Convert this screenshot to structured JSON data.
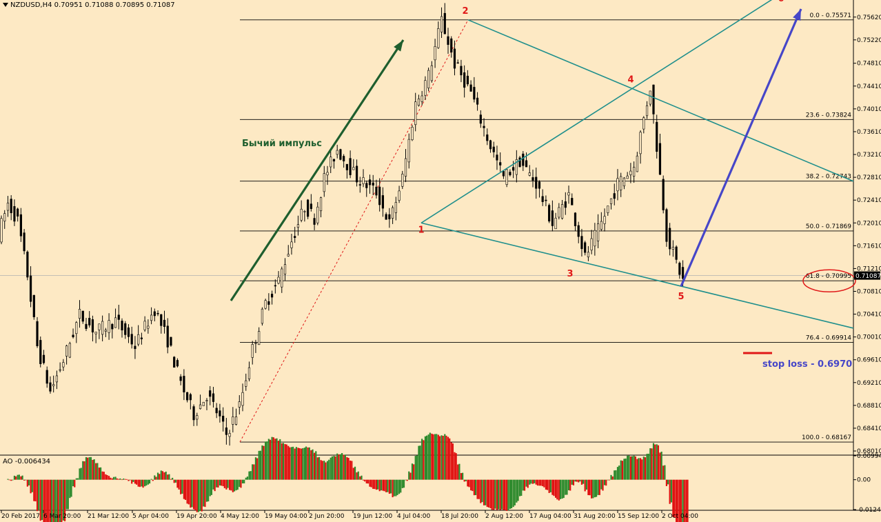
{
  "header": {
    "symbol_info": "NZDUSD,H4  0.70951 0.71088 0.70895 0.71087",
    "ao_info": "AO -0.006434"
  },
  "colors": {
    "background": "#fde9c4",
    "candles": "#000000",
    "fib_lines": "#000000",
    "channel": "#1f8f8c",
    "impulse_arrow": "#1e5e2e",
    "target_arrow": "#4646c8",
    "wave_labels": "#e01818",
    "stop_line": "#e01818",
    "stop_text": "#4646c8",
    "price_tag_bg": "#000000",
    "ao_up": "#2d8a2d",
    "ao_down": "#e01010"
  },
  "icons": {
    "dropdown": "triangle-down-icon"
  },
  "chart_data": [
    {
      "type": "line",
      "title": "NZDUSD,H4",
      "price_axis": {
        "ticks": [
          "0.75620",
          "0.75220",
          "0.74810",
          "0.74410",
          "0.74010",
          "0.73610",
          "0.73210",
          "0.72810",
          "0.72410",
          "0.72010",
          "0.71610",
          "0.71210",
          "0.70810",
          "0.70410",
          "0.70010",
          "0.69610",
          "0.69210",
          "0.68810",
          "0.68410",
          "0.68010"
        ],
        "ylim": [
          0.6795,
          0.7575
        ],
        "current_price": "0.71087"
      },
      "time_axis": {
        "labels": [
          "20 Feb 2017",
          "6 Mar 20:00",
          "21 Mar 12:00",
          "5 Apr 04:00",
          "19 Apr 20:00",
          "4 May 12:00",
          "19 May 04:00",
          "2 Jun 20:00",
          "19 Jun 12:00",
          "4 Jul 04:00",
          "18 Jul 20:00",
          "2 Aug 12:00",
          "17 Aug 04:00",
          "31 Aug 20:00",
          "15 Sep 12:00",
          "2 Oct 04:00"
        ]
      },
      "price_path": {
        "x_index": [
          0,
          3,
          6,
          9,
          12,
          16,
          20,
          25,
          30,
          36,
          42,
          48,
          52,
          56,
          60,
          64,
          67,
          70,
          74,
          78,
          82,
          86,
          90,
          94,
          97,
          100,
          104,
          110,
          116,
          120,
          124,
          128,
          132,
          136,
          140,
          145,
          150,
          155,
          160,
          165,
          170,
          175,
          180,
          185,
          190,
          195,
          200,
          205,
          210
        ],
        "close": [
          0.718,
          0.7235,
          0.7205,
          0.711,
          0.6985,
          0.6905,
          0.696,
          0.704,
          0.701,
          0.703,
          0.6985,
          0.705,
          0.6995,
          0.692,
          0.6865,
          0.69,
          0.687,
          0.683,
          0.688,
          0.698,
          0.706,
          0.71,
          0.717,
          0.723,
          0.721,
          0.728,
          0.733,
          0.728,
          0.7255,
          0.72,
          0.728,
          0.741,
          0.746,
          0.7557,
          0.748,
          0.743,
          0.735,
          0.728,
          0.731,
          0.727,
          0.72,
          0.725,
          0.714,
          0.72,
          0.727,
          0.73,
          0.744,
          0.718,
          0.71
        ]
      },
      "fibonacci_levels": [
        {
          "label": "0.0 - 0.75571",
          "value": 0.75571
        },
        {
          "label": "23.6 - 0.73824",
          "value": 0.73824
        },
        {
          "label": "38.2 - 0.72743",
          "value": 0.72743
        },
        {
          "label": "50.0 - 0.71869",
          "value": 0.71869
        },
        {
          "label": "61.8 - 0.70995",
          "value": 0.70995
        },
        {
          "label": "76.4 - 0.69914",
          "value": 0.69914
        },
        {
          "label": "100.0 - 0.68167",
          "value": 0.68167
        }
      ],
      "wave_points": [
        {
          "label": "1",
          "date": "4 Jul",
          "price": 0.7201
        },
        {
          "label": "2",
          "date": "20 Jul",
          "price": 0.75571
        },
        {
          "label": "3",
          "date": "27 Aug",
          "price": 0.7124
        },
        {
          "label": "4",
          "date": "15 Sep",
          "price": 0.74366
        },
        {
          "label": "5",
          "date": "5 Oct",
          "price": 0.709
        },
        {
          "label": "6",
          "date": "",
          "price": 0.758
        }
      ],
      "annotations": {
        "impulse_text": "Бычий импульс",
        "stop_loss_text": "stop loss - 0.6970",
        "highlighted_level": "61.8 - 0.70995"
      }
    },
    {
      "type": "bar",
      "title": "AO",
      "current_value": -0.006434,
      "y_ticks": [
        "0.009941",
        "0.00",
        "-0.012424"
      ],
      "ylim": [
        -0.012424,
        0.009941
      ]
    }
  ]
}
